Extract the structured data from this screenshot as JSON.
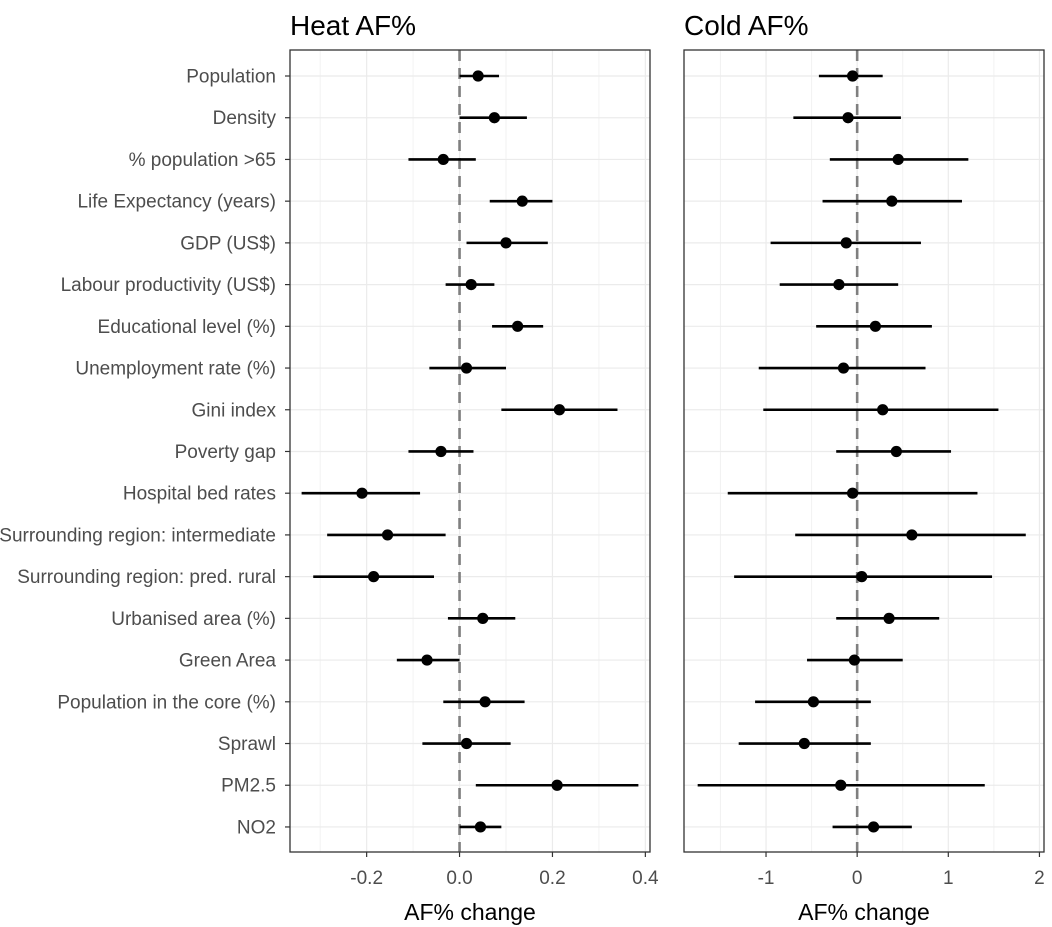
{
  "chart_data": {
    "type": "forest",
    "ylabels": [
      "Population",
      "Density",
      "% population >65",
      "Life Expectancy (years)",
      "GDP (US$)",
      "Labour productivity (US$)",
      "Educational level (%)",
      "Unemployment rate (%)",
      "Gini index",
      "Poverty gap",
      "Hospital bed rates",
      "Surrounding region: intermediate",
      "Surrounding region: pred. rural",
      "Urbanised area (%)",
      "Green Area",
      "Population in the core (%)",
      "Sprawl",
      "PM2.5",
      "NO2"
    ],
    "panels": [
      {
        "title": "Heat AF%",
        "xlabel": "AF% change",
        "xlim": [
          -0.365,
          0.41
        ],
        "xticks": [
          -0.2,
          0.0,
          0.2,
          0.4
        ],
        "xtick_labels": [
          "-0.2",
          "0.0",
          "0.2",
          "0.4"
        ],
        "reference_line": 0,
        "estimates": [
          0.04,
          0.075,
          -0.035,
          0.135,
          0.1,
          0.025,
          0.125,
          0.015,
          0.215,
          -0.04,
          -0.21,
          -0.155,
          -0.185,
          0.05,
          -0.07,
          0.055,
          0.015,
          0.21,
          0.045
        ],
        "lower": [
          0.0,
          0.0,
          -0.11,
          0.065,
          0.015,
          -0.03,
          0.07,
          -0.065,
          0.09,
          -0.11,
          -0.34,
          -0.285,
          -0.315,
          -0.025,
          -0.135,
          -0.035,
          -0.08,
          0.035,
          0.0
        ],
        "upper": [
          0.085,
          0.145,
          0.035,
          0.2,
          0.19,
          0.075,
          0.18,
          0.1,
          0.34,
          0.03,
          -0.085,
          -0.03,
          -0.055,
          0.12,
          0.0,
          0.14,
          0.11,
          0.385,
          0.09
        ]
      },
      {
        "title": "Cold AF%",
        "xlabel": "AF% change",
        "xlim": [
          -1.9,
          2.05
        ],
        "xticks": [
          -1,
          0,
          1,
          2
        ],
        "xtick_labels": [
          "-1",
          "0",
          "1",
          "2"
        ],
        "reference_line": 0,
        "estimates": [
          -0.05,
          -0.1,
          0.45,
          0.38,
          -0.12,
          -0.2,
          0.2,
          -0.15,
          0.28,
          0.43,
          -0.05,
          0.6,
          0.05,
          0.35,
          -0.03,
          -0.48,
          -0.58,
          -0.18,
          0.18
        ],
        "lower": [
          -0.42,
          -0.7,
          -0.3,
          -0.38,
          -0.95,
          -0.85,
          -0.45,
          -1.08,
          -1.03,
          -0.23,
          -1.42,
          -0.68,
          -1.35,
          -0.23,
          -0.55,
          -1.12,
          -1.3,
          -1.75,
          -0.27
        ],
        "upper": [
          0.28,
          0.48,
          1.22,
          1.15,
          0.7,
          0.45,
          0.82,
          0.75,
          1.55,
          1.03,
          1.32,
          1.85,
          1.48,
          0.9,
          0.5,
          0.15,
          0.15,
          1.4,
          0.6
        ]
      }
    ]
  }
}
